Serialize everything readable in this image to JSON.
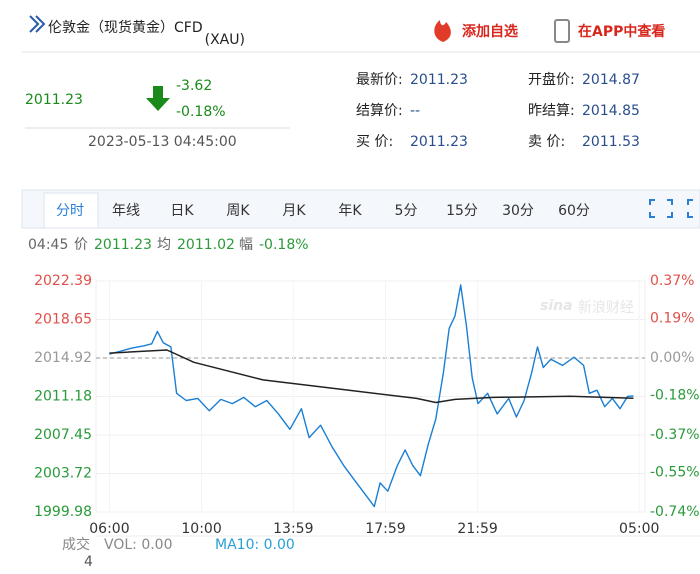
{
  "header": {
    "title": "伦敦金（现货黄金）CFD",
    "code": "(XAU)",
    "add_button": "添加自选",
    "app_button": "在APP中查看"
  },
  "quote": {
    "price": "2011.23",
    "change": "-3.62",
    "change_pct": "-0.18%",
    "datetime": "2023-05-13 04:45:00"
  },
  "info": [
    [
      {
        "label": "最新价:",
        "value": "2011.23"
      },
      {
        "label": "开盘价:",
        "value": "2014.87"
      }
    ],
    [
      {
        "label": "结算价:",
        "value": "--"
      },
      {
        "label": "昨结算:",
        "value": "2014.85"
      }
    ],
    [
      {
        "label": "买  价:",
        "value": "2011.23"
      },
      {
        "label": "卖  价:",
        "value": "2011.53"
      }
    ]
  ],
  "tabs": [
    "分时",
    "年线",
    "日K",
    "周K",
    "月K",
    "年K",
    "5分",
    "15分",
    "30分",
    "60分"
  ],
  "quote_bar": {
    "time": "04:45",
    "price_label": "价",
    "price": "2011.23",
    "avg_label": "均",
    "avg": "2011.02",
    "pct_label": "幅",
    "pct": "-0.18%"
  },
  "watermark": {
    "brand": "sina",
    "name": "新浪财经"
  },
  "volume_bar": {
    "label": "成交",
    "vol": "VOL: 0.00",
    "ma": "MA10: 0.00",
    "count": "4"
  },
  "chart_data": {
    "type": "line",
    "xlim": [
      -35,
      1395
    ],
    "xticks": [
      {
        "value": 0,
        "label": "06:00"
      },
      {
        "value": 240,
        "label": "10:00"
      },
      {
        "value": 479,
        "label": "13:59"
      },
      {
        "value": 719,
        "label": "17:59"
      },
      {
        "value": 959,
        "label": "21:59"
      },
      {
        "value": 1380,
        "label": "05:00"
      }
    ],
    "ylim": [
      1999.98,
      2022.39
    ],
    "yticks": [
      1999.98,
      2003.72,
      2007.45,
      2011.18,
      2014.92,
      2018.65,
      2022.39
    ],
    "y2lim": [
      -0.74,
      0.37
    ],
    "y2ticks": [
      {
        "value": -0.74,
        "label": "-0.74%"
      },
      {
        "value": -0.55,
        "label": "-0.55%"
      },
      {
        "value": -0.37,
        "label": "-0.37%"
      },
      {
        "value": -0.18,
        "label": "-0.18%"
      },
      {
        "value": 0,
        "label": "0.00%"
      },
      {
        "value": 0.19,
        "label": "0.19%"
      },
      {
        "value": 0.37,
        "label": "0.37%"
      }
    ],
    "grid": true,
    "series": [
      {
        "name": "价",
        "color": "#1a7fd4",
        "x": [
          0,
          30,
          60,
          90,
          110,
          125,
          140,
          160,
          175,
          200,
          230,
          260,
          290,
          320,
          350,
          380,
          410,
          440,
          470,
          500,
          520,
          550,
          580,
          610,
          640,
          670,
          690,
          705,
          725,
          750,
          770,
          790,
          810,
          830,
          850,
          870,
          885,
          900,
          915,
          930,
          945,
          960,
          985,
          1010,
          1040,
          1060,
          1080,
          1100,
          1115,
          1130,
          1150,
          1180,
          1210,
          1235,
          1250,
          1270,
          1290,
          1310,
          1330,
          1350,
          1365
        ],
        "values": [
          2015.3,
          2015.6,
          2015.9,
          2016.1,
          2016.3,
          2017.5,
          2016.4,
          2016.0,
          2011.5,
          2010.8,
          2011.0,
          2009.8,
          2010.9,
          2010.5,
          2011.1,
          2010.2,
          2010.8,
          2009.5,
          2008.0,
          2010.0,
          2007.2,
          2008.4,
          2006.3,
          2004.5,
          2003.0,
          2001.5,
          2000.5,
          2002.8,
          2002.0,
          2004.5,
          2006.0,
          2004.5,
          2003.5,
          2006.5,
          2009.0,
          2013.5,
          2017.8,
          2019.0,
          2022.0,
          2018.0,
          2013.0,
          2010.5,
          2011.5,
          2009.5,
          2011.0,
          2009.2,
          2010.8,
          2013.5,
          2016.0,
          2014.0,
          2014.8,
          2014.2,
          2015.0,
          2014.2,
          2011.5,
          2011.8,
          2010.2,
          2011.0,
          2010.0,
          2011.2,
          2011.23
        ]
      },
      {
        "name": "均",
        "color": "#222222",
        "x": [
          0,
          150,
          220,
          400,
          600,
          800,
          850,
          900,
          1000,
          1200,
          1365
        ],
        "values": [
          2015.4,
          2015.7,
          2014.5,
          2012.8,
          2011.9,
          2011.0,
          2010.6,
          2010.9,
          2011.1,
          2011.2,
          2011.02
        ]
      }
    ]
  }
}
